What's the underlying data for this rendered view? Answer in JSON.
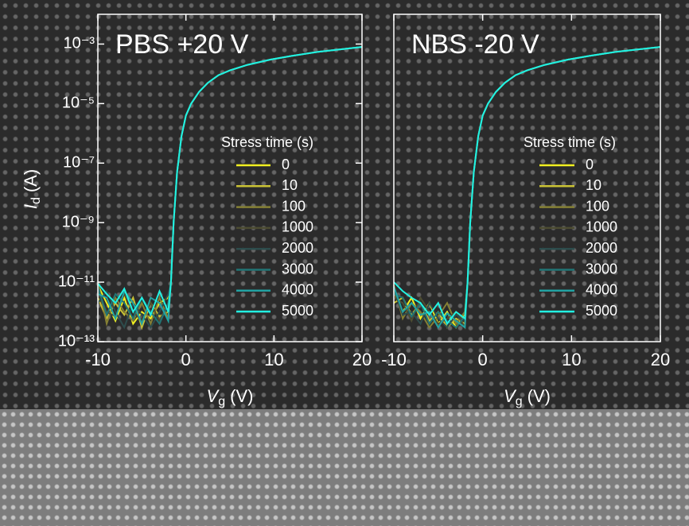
{
  "chart_data": [
    {
      "type": "line",
      "title": "PBS +20 V",
      "log_y": true,
      "xlabel": {
        "symbol": "V",
        "subscript": "g",
        "unit": "(V)"
      },
      "ylabel": {
        "symbol": "I",
        "subscript": "d",
        "unit": "(A)"
      },
      "legend_title": "Stress time (s)",
      "xlim": [
        -10,
        20
      ],
      "xticks": [
        -10,
        0,
        10,
        20
      ],
      "ylim": [
        1e-13,
        0.01
      ],
      "yticks": [
        {
          "value": 1e-13,
          "label": "10⁻¹³"
        },
        {
          "value": 1e-11,
          "label": "10⁻¹¹"
        },
        {
          "value": 1e-09,
          "label": "10⁻⁹"
        },
        {
          "value": 1e-07,
          "label": "10⁻⁷"
        },
        {
          "value": 1e-05,
          "label": "10⁻⁵"
        },
        {
          "value": 0.001,
          "label": "10⁻³"
        }
      ],
      "x": [
        -10,
        -9,
        -8,
        -7,
        -6,
        -5,
        -4,
        -3,
        -2,
        -1.7,
        -1.4,
        -1,
        -0.5,
        0,
        0.6,
        1.5,
        2.5,
        3.7,
        5,
        7,
        9.6,
        12,
        15,
        20
      ],
      "series": [
        {
          "name": "0",
          "color": "#f2f020",
          "values": [
            8e-12,
            2e-12,
            5e-13,
            3e-12,
            4e-13,
            1e-12,
            6e-13,
            2e-12,
            3e-12,
            1e-11,
            1e-09,
            5e-08,
            8e-07,
            4e-06,
            1e-05,
            2.5e-05,
            5e-05,
            9e-05,
            0.00013,
            0.0002,
            0.0003,
            0.0004,
            0.00055,
            0.0008
          ]
        },
        {
          "name": "10",
          "color": "#c9c234",
          "values": [
            3e-12,
            6e-13,
            2e-12,
            8e-13,
            3e-12,
            3e-13,
            2e-12,
            7e-13,
            1e-12,
            1e-11,
            1e-09,
            5e-08,
            8e-07,
            4e-06,
            1e-05,
            2.5e-05,
            5e-05,
            9e-05,
            0.00013,
            0.0002,
            0.0003,
            0.0004,
            0.00055,
            0.0008
          ]
        },
        {
          "name": "100",
          "color": "#858034",
          "values": [
            1e-11,
            4e-13,
            3e-12,
            1e-12,
            5e-13,
            2e-12,
            4e-13,
            3e-12,
            6e-13,
            1e-11,
            1e-09,
            5e-08,
            8e-07,
            4e-06,
            1e-05,
            2.5e-05,
            5e-05,
            9e-05,
            0.00013,
            0.0002,
            0.0003,
            0.0004,
            0.00055,
            0.0008
          ]
        },
        {
          "name": "1000",
          "color": "#4d4c32",
          "values": [
            5e-12,
            1e-12,
            7e-13,
            4e-12,
            1e-12,
            5e-13,
            2e-12,
            5e-13,
            2e-12,
            1e-11,
            1e-09,
            5e-08,
            8e-07,
            4e-06,
            1e-05,
            2.5e-05,
            5e-05,
            9e-05,
            0.00013,
            0.0002,
            0.0003,
            0.0004,
            0.00055,
            0.0008
          ]
        },
        {
          "name": "2000",
          "color": "#2d4c4c",
          "values": [
            2e-12,
            5e-12,
            1e-12,
            3e-13,
            2e-12,
            8e-13,
            3e-13,
            1e-12,
            4e-12,
            1e-11,
            1e-09,
            5e-08,
            8e-07,
            4e-06,
            1e-05,
            2.5e-05,
            5e-05,
            9e-05,
            0.00013,
            0.0002,
            0.0003,
            0.0004,
            0.00055,
            0.0008
          ]
        },
        {
          "name": "3000",
          "color": "#217474",
          "values": [
            7e-12,
            8e-13,
            4e-12,
            2e-12,
            6e-13,
            3e-12,
            1e-12,
            4e-13,
            2e-12,
            1e-11,
            1e-09,
            5e-08,
            8e-07,
            4e-06,
            1e-05,
            2.5e-05,
            5e-05,
            9e-05,
            0.00013,
            0.0002,
            0.0003,
            0.0004,
            0.00055,
            0.0008
          ]
        },
        {
          "name": "4000",
          "color": "#22a3a3",
          "values": [
            4e-12,
            3e-12,
            6e-13,
            5e-12,
            2e-12,
            4e-13,
            3e-12,
            2e-12,
            5e-13,
            1e-11,
            1e-09,
            5e-08,
            8e-07,
            4e-06,
            1e-05,
            2.5e-05,
            5e-05,
            9e-05,
            0.00013,
            0.0002,
            0.0003,
            0.0004,
            0.00055,
            0.0008
          ]
        },
        {
          "name": "5000",
          "color": "#22f2e2",
          "values": [
            9e-12,
            4e-12,
            2e-12,
            6e-12,
            1e-12,
            3e-12,
            8e-13,
            5e-12,
            1e-12,
            1e-11,
            1e-09,
            5e-08,
            8e-07,
            4e-06,
            1e-05,
            2.5e-05,
            5e-05,
            9e-05,
            0.00013,
            0.0002,
            0.0003,
            0.0004,
            0.00055,
            0.0008
          ]
        }
      ]
    },
    {
      "type": "line",
      "title": "NBS -20 V",
      "log_y": true,
      "xlabel": {
        "symbol": "V",
        "subscript": "g",
        "unit": "(V)"
      },
      "legend_title": "Stress time (s)",
      "xlim": [
        -10,
        20
      ],
      "xticks": [
        -10,
        0,
        10,
        20
      ],
      "ylim": [
        1e-13,
        0.01
      ],
      "x": [
        -10,
        -9,
        -8,
        -7,
        -6,
        -5,
        -4,
        -3,
        -2,
        -1.7,
        -1.4,
        -1,
        -0.5,
        0,
        0.6,
        1.5,
        2.5,
        3.7,
        5,
        7,
        9.6,
        12,
        15,
        20
      ],
      "series": [
        {
          "name": "0",
          "color": "#f2f020",
          "values": [
            5e-12,
            1e-12,
            3e-12,
            6e-13,
            2e-12,
            4e-13,
            1e-12,
            3e-13,
            8e-13,
            1e-11,
            1e-09,
            5e-08,
            8e-07,
            4e-06,
            1e-05,
            2.5e-05,
            5e-05,
            9e-05,
            0.00013,
            0.0002,
            0.0003,
            0.0004,
            0.00055,
            0.0008
          ]
        },
        {
          "name": "10",
          "color": "#c9c234",
          "values": [
            2e-12,
            3e-12,
            8e-13,
            2e-12,
            5e-13,
            1e-12,
            3e-13,
            6e-13,
            4e-13,
            1e-11,
            1e-09,
            5e-08,
            8e-07,
            4e-06,
            1e-05,
            2.5e-05,
            5e-05,
            9e-05,
            0.00013,
            0.0002,
            0.0003,
            0.0004,
            0.00055,
            0.0008
          ]
        },
        {
          "name": "100",
          "color": "#858034",
          "values": [
            8e-12,
            6e-13,
            2e-12,
            1e-12,
            3e-13,
            7e-13,
            2e-12,
            4e-13,
            1e-12,
            1e-11,
            1e-09,
            5e-08,
            8e-07,
            4e-06,
            1e-05,
            2.5e-05,
            5e-05,
            9e-05,
            0.00013,
            0.0002,
            0.0003,
            0.0004,
            0.00055,
            0.0008
          ]
        },
        {
          "name": "1000",
          "color": "#4d4c32",
          "values": [
            3e-12,
            2e-12,
            5e-13,
            3e-12,
            1e-12,
            4e-13,
            6e-13,
            1e-12,
            3e-13,
            1e-11,
            1e-09,
            5e-08,
            8e-07,
            4e-06,
            1e-05,
            2.5e-05,
            5e-05,
            9e-05,
            0.00013,
            0.0002,
            0.0003,
            0.0004,
            0.00055,
            0.0008
          ]
        },
        {
          "name": "2000",
          "color": "#2d4c4c",
          "values": [
            6e-12,
            8e-13,
            1e-12,
            4e-13,
            2e-12,
            6e-13,
            3e-13,
            8e-13,
            5e-13,
            1e-11,
            1e-09,
            5e-08,
            8e-07,
            4e-06,
            1e-05,
            2.5e-05,
            5e-05,
            9e-05,
            0.00013,
            0.0002,
            0.0003,
            0.0004,
            0.00055,
            0.0008
          ]
        },
        {
          "name": "3000",
          "color": "#217474",
          "values": [
            4e-12,
            3e-12,
            7e-13,
            2e-12,
            4e-13,
            1e-12,
            5e-13,
            3e-13,
            7e-13,
            1e-11,
            1e-09,
            5e-08,
            8e-07,
            4e-06,
            1e-05,
            2.5e-05,
            5e-05,
            9e-05,
            0.00013,
            0.0002,
            0.0003,
            0.0004,
            0.00055,
            0.0008
          ]
        },
        {
          "name": "4000",
          "color": "#22a3a3",
          "values": [
            7e-12,
            1e-12,
            2e-12,
            8e-13,
            1e-12,
            3e-13,
            9e-13,
            5e-13,
            3e-13,
            1e-11,
            1e-09,
            5e-08,
            8e-07,
            4e-06,
            1e-05,
            2.5e-05,
            5e-05,
            9e-05,
            0.00013,
            0.0002,
            0.0003,
            0.0004,
            0.00055,
            0.0008
          ]
        },
        {
          "name": "5000",
          "color": "#22f2e2",
          "values": [
            1e-11,
            5e-12,
            3e-12,
            2e-12,
            8e-13,
            2e-12,
            4e-13,
            1e-12,
            6e-13,
            1e-11,
            1e-09,
            5e-08,
            8e-07,
            4e-06,
            1e-05,
            2.5e-05,
            5e-05,
            9e-05,
            0.00013,
            0.0002,
            0.0003,
            0.0004,
            0.00055,
            0.0008
          ]
        }
      ]
    }
  ]
}
